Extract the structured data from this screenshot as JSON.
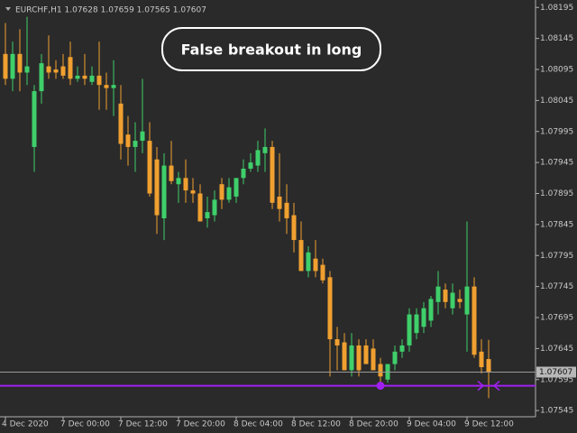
{
  "chart_data": {
    "type": "candlestick",
    "title": "EURCHF,H1 1.07628 1.07659 1.07565 1.07607",
    "annotation": "False breakout in long",
    "categories": [
      "4 Dec 2020",
      null,
      null,
      null,
      null,
      null,
      null,
      null,
      "7 Dec 00:00",
      null,
      null,
      null,
      null,
      null,
      null,
      null,
      "7 Dec 12:00",
      null,
      null,
      null,
      null,
      null,
      null,
      null,
      "7 Dec 20:00",
      null,
      null,
      null,
      null,
      null,
      null,
      null,
      "8 Dec 04:00",
      null,
      null,
      null,
      null,
      null,
      null,
      null,
      "8 Dec 12:00",
      null,
      null,
      null,
      null,
      null,
      null,
      null,
      "8 Dec 20:00",
      null,
      null,
      null,
      null,
      null,
      null,
      null,
      "9 Dec 04:00",
      null,
      null,
      null,
      null,
      null,
      null,
      null,
      "9 Dec 12:00",
      null,
      null,
      null
    ],
    "open": [
      1.0812,
      1.0808,
      1.0812,
      1.0809,
      1.0797,
      1.0806,
      1.081,
      1.08095,
      1.081,
      1.08115,
      1.0808,
      1.08085,
      1.08075,
      1.08085,
      1.0807,
      1.08065,
      1.0804,
      1.0799,
      1.0797,
      1.0798,
      1.0798,
      1.0795,
      1.07855,
      1.0794,
      1.0791,
      1.0792,
      1.079,
      1.07895,
      1.07855,
      1.0786,
      1.0791,
      1.07885,
      1.0789,
      1.0792,
      1.07935,
      1.0794,
      1.0796,
      1.0797,
      1.0789,
      1.0788,
      1.0786,
      1.0782,
      1.0777,
      1.0779,
      1.0778,
      1.0776,
      1.0766,
      1.07655,
      1.0761,
      1.0765,
      1.0765,
      1.07645,
      1.0762,
      1.07595,
      1.0762,
      1.0764,
      1.0765,
      1.0767,
      1.0768,
      1.0769,
      1.0772,
      1.0774,
      1.0771,
      1.07725,
      1.077,
      1.07745,
      1.0764,
      1.07628
    ],
    "high": [
      1.0817,
      1.0814,
      1.0816,
      1.0818,
      1.0807,
      1.0812,
      1.0815,
      1.0811,
      1.0812,
      1.0814,
      1.081,
      1.0812,
      1.081,
      1.0814,
      1.0809,
      1.0811,
      1.0807,
      1.0802,
      1.0801,
      1.0808,
      1.0801,
      1.0797,
      1.0796,
      1.0798,
      1.0793,
      1.0795,
      1.0792,
      1.0791,
      1.0789,
      1.079,
      1.0792,
      1.0792,
      1.0792,
      1.0795,
      1.0796,
      1.0798,
      1.08,
      1.0798,
      1.0796,
      1.0791,
      1.0788,
      1.0785,
      1.0781,
      1.0782,
      1.0779,
      1.0777,
      1.0768,
      1.0767,
      1.0767,
      1.0766,
      1.0766,
      1.0766,
      1.0763,
      1.0762,
      1.0765,
      1.0766,
      1.0771,
      1.0771,
      1.0772,
      1.0773,
      1.0777,
      1.0775,
      1.0775,
      1.0774,
      1.0785,
      1.0776,
      1.0766,
      1.07659
    ],
    "low": [
      1.0807,
      1.0806,
      1.0806,
      1.0807,
      1.0793,
      1.0804,
      1.0808,
      1.0808,
      1.0808,
      1.0807,
      1.08075,
      1.0807,
      1.0807,
      1.0803,
      1.0803,
      1.0802,
      1.0795,
      1.0794,
      1.0793,
      1.0796,
      1.0789,
      1.0783,
      1.0782,
      1.0791,
      1.0788,
      1.0788,
      1.0788,
      1.0785,
      1.0784,
      1.0785,
      1.0787,
      1.0788,
      1.0788,
      1.0791,
      1.0793,
      1.0793,
      1.0793,
      1.0787,
      1.0785,
      1.0783,
      1.078,
      1.0777,
      1.0776,
      1.0776,
      1.0775,
      1.076,
      1.0761,
      1.0761,
      1.076,
      1.076,
      1.0762,
      1.0761,
      1.0759,
      1.0759,
      1.0761,
      1.0763,
      1.0764,
      1.0766,
      1.0767,
      1.0768,
      1.077,
      1.0771,
      1.077,
      1.0771,
      1.0764,
      1.0763,
      1.07605,
      1.07565
    ],
    "close": [
      1.0808,
      1.0812,
      1.0809,
      1.081,
      1.0806,
      1.08105,
      1.0809,
      1.0809,
      1.08085,
      1.0808,
      1.08085,
      1.0808,
      1.08085,
      1.0807,
      1.08065,
      1.0807,
      1.07975,
      1.0797,
      1.0798,
      1.07995,
      1.07895,
      1.0786,
      1.0794,
      1.07915,
      1.0792,
      1.079,
      1.07895,
      1.0785,
      1.07865,
      1.07885,
      1.07885,
      1.07905,
      1.0792,
      1.07935,
      1.07945,
      1.07965,
      1.0797,
      1.0788,
      1.0787,
      1.07855,
      1.0782,
      1.0777,
      1.078,
      1.0777,
      1.07755,
      1.0766,
      1.0765,
      1.0761,
      1.0765,
      1.0761,
      1.0762,
      1.0761,
      1.076,
      1.0762,
      1.0764,
      1.0765,
      1.077,
      1.077,
      1.0771,
      1.07725,
      1.07745,
      1.0772,
      1.07735,
      1.0772,
      1.07745,
      1.07635,
      1.07615,
      1.07607
    ],
    "up_color": "#3fcf6b",
    "down_color": "#f0a030",
    "ylim": [
      1.07535,
      1.08207
    ],
    "yticks": [
      1.08195,
      1.08145,
      1.08095,
      1.08045,
      1.07995,
      1.07945,
      1.07895,
      1.07845,
      1.07795,
      1.07745,
      1.07695,
      1.07645,
      1.07595,
      1.07545
    ],
    "current_price": 1.07607,
    "level": 1.07585,
    "level_color": "#a020f0",
    "level_marker_index": 52,
    "grid": false
  }
}
